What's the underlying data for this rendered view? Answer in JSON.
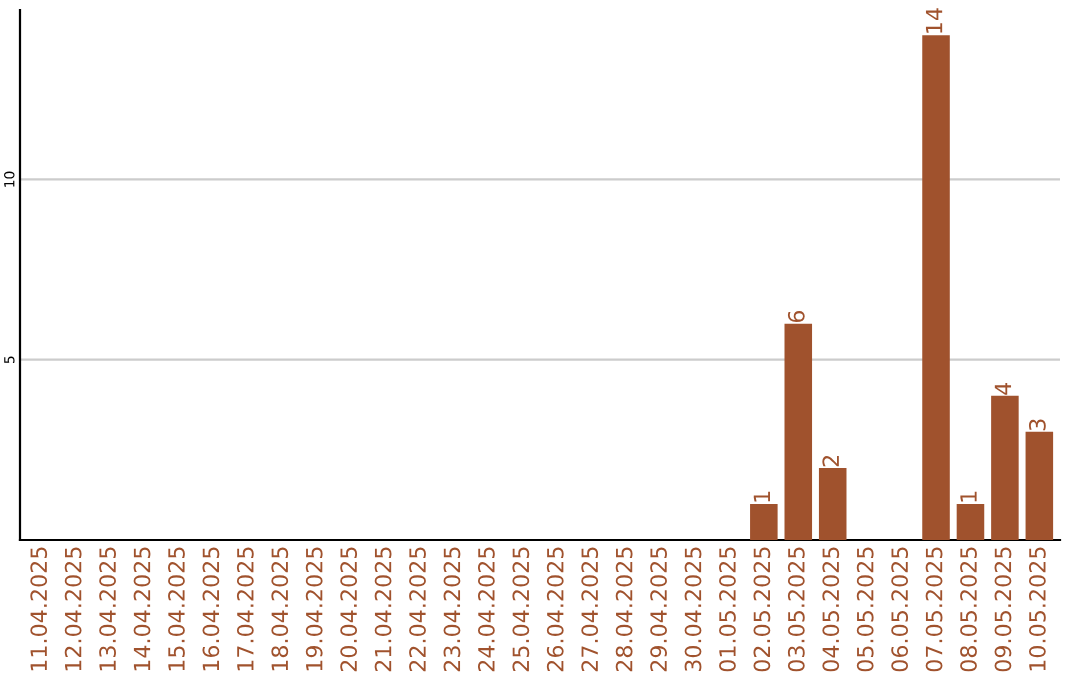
{
  "chart_data": {
    "type": "bar",
    "categories": [
      "11.04.2025",
      "12.04.2025",
      "13.04.2025",
      "14.04.2025",
      "15.04.2025",
      "16.04.2025",
      "17.04.2025",
      "18.04.2025",
      "19.04.2025",
      "20.04.2025",
      "21.04.2025",
      "22.04.2025",
      "23.04.2025",
      "24.04.2025",
      "25.04.2025",
      "26.04.2025",
      "27.04.2025",
      "28.04.2025",
      "29.04.2025",
      "30.04.2025",
      "01.05.2025",
      "02.05.2025",
      "03.05.2025",
      "04.05.2025",
      "05.05.2025",
      "06.05.2025",
      "07.05.2025",
      "08.05.2025",
      "09.05.2025",
      "10.05.2025"
    ],
    "values": [
      0,
      0,
      0,
      0,
      0,
      0,
      0,
      0,
      0,
      0,
      0,
      0,
      0,
      0,
      0,
      0,
      0,
      0,
      0,
      0,
      0,
      1,
      6,
      2,
      0,
      0,
      14,
      1,
      4,
      3
    ],
    "value_labels": [
      null,
      null,
      null,
      null,
      null,
      null,
      null,
      null,
      null,
      null,
      null,
      null,
      null,
      null,
      null,
      null,
      null,
      null,
      null,
      null,
      null,
      "1",
      "6",
      "2",
      null,
      null,
      "14",
      "1",
      "4",
      "3"
    ],
    "color": "#a0522d",
    "ylim": [
      0,
      14.7
    ],
    "yticks": [
      5,
      10
    ],
    "grid": "y"
  }
}
